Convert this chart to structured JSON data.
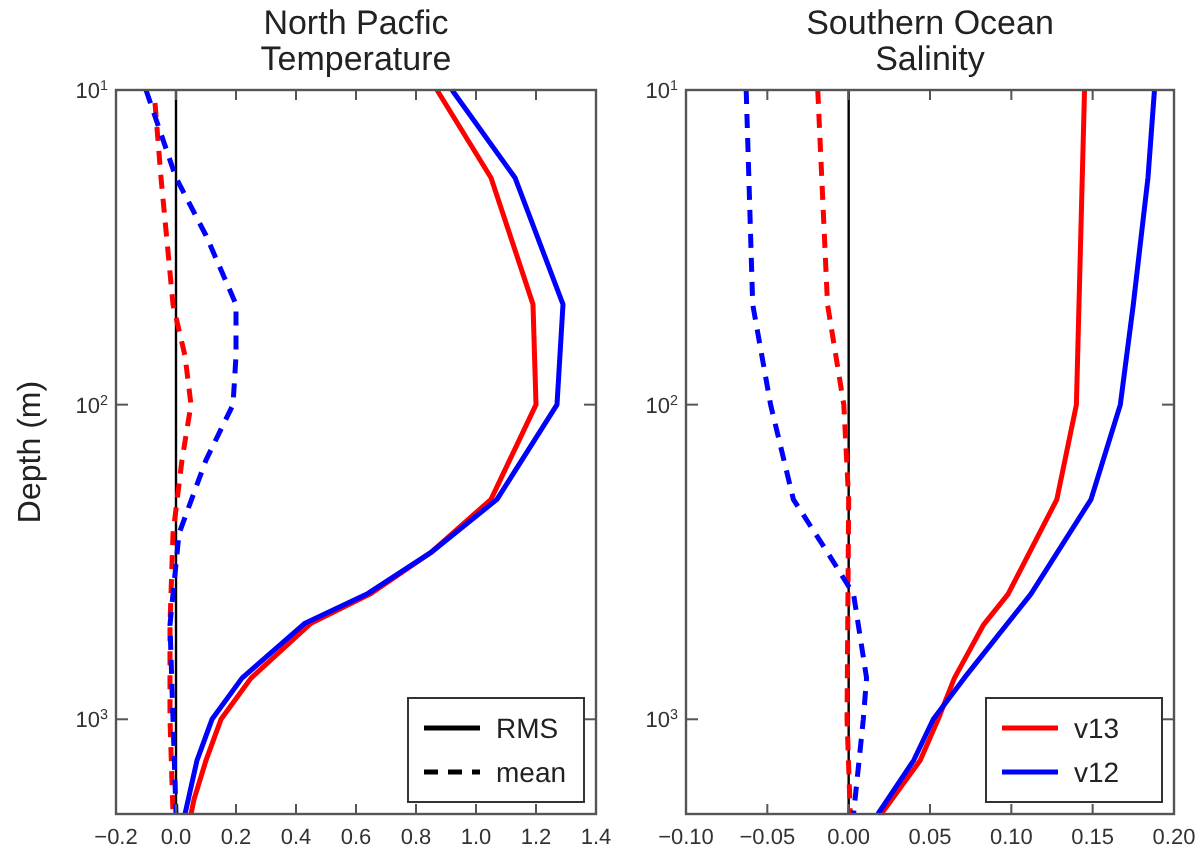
{
  "chart_data": [
    {
      "type": "line",
      "title": "North Pacfic\nTemperature",
      "ylabel": "Depth (m)",
      "log": "y",
      "xlim": [
        -0.2,
        1.4
      ],
      "xticks": [
        {
          "value": -0.2,
          "label": "−0.2"
        },
        {
          "value": 0,
          "label": "0.0"
        },
        0.2,
        0.4,
        0.6,
        0.8,
        {
          "value": 1,
          "label": "1.0"
        },
        1.2,
        1.4
      ],
      "ylim": [
        2000,
        10
      ],
      "yticks": [
        {
          "value": 10,
          "label": "10$^{1}$"
        },
        {
          "value": 100,
          "label": "10$^{2}$"
        },
        {
          "value": 1000,
          "label": "10$^{3}$"
        }
      ],
      "grid": false,
      "legend": "bottom right",
      "annotations": [
        "RMS",
        "mean"
      ],
      "ref_lines": [
        {
          "axis": "x",
          "value": 0,
          "color": "#000000"
        }
      ],
      "series": [
        {
          "color": "#ff0000",
          "line_style": "solid",
          "values": [
            10,
            19,
            48,
            100,
            200,
            295,
            398,
            495,
            740,
            1000,
            1350,
            1800,
            2000
          ],
          "x": [
            0.87,
            1.05,
            1.19,
            1.2,
            1.05,
            0.85,
            0.65,
            0.45,
            0.25,
            0.15,
            0.1,
            0.06,
            0.05
          ]
        },
        {
          "color": "#0000ff",
          "line_style": "solid",
          "values": [
            10,
            19,
            48,
            100,
            200,
            295,
            398,
            495,
            740,
            1000,
            1350,
            2000
          ],
          "x": [
            0.92,
            1.13,
            1.29,
            1.27,
            1.07,
            0.85,
            0.64,
            0.43,
            0.22,
            0.12,
            0.07,
            0.03
          ]
        },
        {
          "color": "#ff0000",
          "line_style": "dashed",
          "values": [
            11,
            19,
            48,
            70,
            100,
            150,
            257,
            500,
            1000,
            2000
          ],
          "x": [
            -0.07,
            -0.05,
            -0.01,
            0.03,
            0.05,
            0.02,
            -0.01,
            -0.02,
            -0.02,
            -0.01
          ]
        },
        {
          "color": "#0000ff",
          "line_style": "dashed",
          "values": [
            10,
            19,
            29,
            48,
            70,
            100,
            150,
            257,
            500,
            1000,
            2000
          ],
          "x": [
            -0.1,
            0.0,
            0.1,
            0.2,
            0.2,
            0.19,
            0.1,
            0.01,
            -0.02,
            -0.01,
            0.0
          ]
        }
      ]
    },
    {
      "type": "line",
      "title": "Southern Ocean\nSalinity",
      "log": "y",
      "xlim": [
        -0.1,
        0.2
      ],
      "xticks": [
        {
          "value": -0.1,
          "label": "−0.10"
        },
        {
          "value": -0.05,
          "label": "−0.05"
        },
        {
          "value": 0,
          "label": "0.00"
        },
        {
          "value": 0.05,
          "label": "0.05"
        },
        {
          "value": 0.1,
          "label": "0.10"
        },
        {
          "value": 0.15,
          "label": "0.15"
        },
        {
          "value": 0.2,
          "label": "0.20"
        }
      ],
      "ylim": [
        2000,
        10
      ],
      "yticks": [
        {
          "value": 10,
          "label": "10$^{1}$"
        },
        {
          "value": 100,
          "label": "10$^{2}$"
        },
        {
          "value": 1000,
          "label": "10$^{3}$"
        }
      ],
      "grid": false,
      "legend": "bottom right",
      "ref_lines": [
        {
          "axis": "x",
          "value": 0,
          "color": "#000000"
        }
      ],
      "series": [
        {
          "name": "v13",
          "color": "#ff0000",
          "line_style": "solid",
          "values": [
            10,
            100,
            200,
            400,
            500,
            740,
            1000,
            1350,
            2000
          ],
          "x": [
            0.145,
            0.14,
            0.128,
            0.098,
            0.083,
            0.065,
            0.055,
            0.044,
            0.02
          ]
        },
        {
          "name": "v12",
          "color": "#0000ff",
          "line_style": "solid",
          "values": [
            10,
            19,
            48,
            100,
            200,
            400,
            740,
            1000,
            1350,
            2000
          ],
          "x": [
            0.188,
            0.184,
            0.175,
            0.167,
            0.149,
            0.112,
            0.071,
            0.052,
            0.04,
            0.018
          ]
        },
        {
          "color": "#ff0000",
          "line_style": "dashed",
          "values": [
            10,
            48,
            100,
            200,
            1000,
            2000
          ],
          "x": [
            -0.019,
            -0.013,
            -0.003,
            0.0,
            -0.001,
            0.001
          ]
        },
        {
          "color": "#0000ff",
          "line_style": "dashed",
          "values": [
            10,
            48,
            100,
            200,
            295,
            400,
            740,
            1000,
            2000
          ],
          "x": [
            -0.063,
            -0.059,
            -0.048,
            -0.034,
            -0.013,
            0.003,
            0.011,
            0.009,
            0.003
          ]
        }
      ]
    }
  ]
}
